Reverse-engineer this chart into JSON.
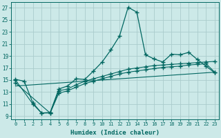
{
  "xlabel": "Humidex (Indice chaleur)",
  "bg_color": "#cce9e8",
  "line_color": "#006660",
  "grid_color": "#aacccc",
  "xlim": [
    -0.5,
    23.5
  ],
  "ylim": [
    8.5,
    28.0
  ],
  "xticks": [
    0,
    1,
    2,
    3,
    4,
    5,
    6,
    7,
    8,
    9,
    10,
    11,
    12,
    13,
    14,
    15,
    16,
    17,
    18,
    19,
    20,
    21,
    22,
    23
  ],
  "yticks": [
    9,
    11,
    13,
    15,
    17,
    19,
    21,
    23,
    25,
    27
  ],
  "curve1_x": [
    0,
    1,
    2,
    3,
    4,
    5,
    6,
    7,
    8,
    9,
    10,
    11,
    12,
    13,
    14,
    15,
    16,
    17,
    18,
    19,
    20,
    21,
    22,
    23
  ],
  "curve1_y": [
    15.1,
    14.8,
    11.2,
    9.5,
    9.6,
    13.5,
    14.0,
    15.2,
    15.1,
    16.5,
    18.0,
    20.0,
    22.3,
    27.1,
    26.3,
    19.2,
    18.5,
    18.0,
    19.3,
    19.2,
    19.6,
    18.4,
    17.3,
    16.2
  ],
  "curve2_x": [
    0,
    2,
    3,
    4,
    5,
    6,
    7,
    8,
    9,
    10,
    11,
    12,
    13,
    14,
    15,
    16,
    17,
    18,
    19,
    20,
    21,
    22,
    23
  ],
  "curve2_y": [
    15.0,
    11.0,
    9.5,
    9.5,
    13.2,
    13.5,
    14.2,
    14.8,
    15.2,
    15.6,
    16.0,
    16.4,
    16.8,
    17.0,
    17.2,
    17.4,
    17.5,
    17.6,
    17.7,
    17.8,
    17.9,
    18.0,
    18.1
  ],
  "curve3_x": [
    0,
    4,
    5,
    6,
    7,
    8,
    9,
    10,
    11,
    12,
    13,
    14,
    15,
    16,
    17,
    18,
    19,
    20,
    21,
    22,
    23
  ],
  "curve3_y": [
    14.5,
    9.5,
    12.8,
    13.2,
    13.8,
    14.4,
    14.8,
    15.2,
    15.6,
    16.0,
    16.3,
    16.5,
    16.7,
    16.9,
    17.1,
    17.2,
    17.3,
    17.5,
    17.6,
    17.7,
    16.3
  ],
  "curve4_x": [
    0,
    23
  ],
  "curve4_y": [
    14.0,
    16.3
  ]
}
